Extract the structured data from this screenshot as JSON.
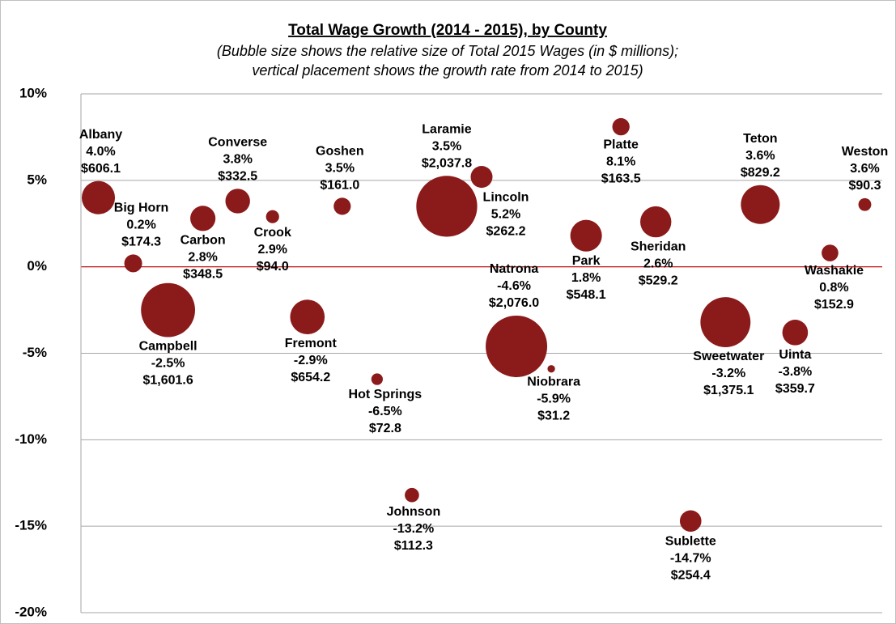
{
  "chart_data": {
    "type": "bubble",
    "title": "Total Wage Growth (2014 - 2015), by County",
    "subtitle": [
      "(Bubble size shows the relative size of Total 2015 Wages (in $ millions);",
      "vertical placement shows the growth rate from 2014 to 2015)"
    ],
    "color": "#8b1a1a",
    "zero_line_color": "#c00000",
    "grid": true,
    "ylim": [
      -20,
      10
    ],
    "yticks": [
      {
        "value": -20,
        "label": "-20%"
      },
      {
        "value": -15,
        "label": "-15%"
      },
      {
        "value": -10,
        "label": "-10%"
      },
      {
        "value": -5,
        "label": "-5%"
      },
      {
        "value": 0,
        "label": "0%"
      },
      {
        "value": 5,
        "label": "5%"
      },
      {
        "value": 10,
        "label": "10%"
      }
    ],
    "categories": [
      "Albany",
      "Big Horn",
      "Campbell",
      "Carbon",
      "Converse",
      "Crook",
      "Fremont",
      "Goshen",
      "Hot Springs",
      "Johnson",
      "Laramie",
      "Lincoln",
      "Natrona",
      "Niobrara",
      "Park",
      "Platte",
      "Sheridan",
      "Sublette",
      "Sweetwater",
      "Teton",
      "Uinta",
      "Washakie",
      "Weston"
    ],
    "values": [
      4.0,
      0.2,
      -2.5,
      2.8,
      3.8,
      2.9,
      -2.9,
      3.5,
      -6.5,
      -13.2,
      3.5,
      5.2,
      -4.6,
      -5.9,
      1.8,
      8.1,
      2.6,
      -14.7,
      -3.2,
      3.6,
      -3.8,
      0.8,
      3.6
    ],
    "value_labels": [
      "4.0%",
      "0.2%",
      "-2.5%",
      "2.8%",
      "3.8%",
      "2.9%",
      "-2.9%",
      "3.5%",
      "-6.5%",
      "-13.2%",
      "3.5%",
      "5.2%",
      "-4.6%",
      "-5.9%",
      "1.8%",
      "8.1%",
      "2.6%",
      "-14.7%",
      "-3.2%",
      "3.6%",
      "-3.8%",
      "0.8%",
      "3.6%"
    ],
    "sizes": [
      606.1,
      174.3,
      1601.6,
      348.5,
      332.5,
      94.0,
      654.2,
      161.0,
      72.8,
      112.3,
      2037.8,
      262.2,
      2076.0,
      31.2,
      548.1,
      163.5,
      529.2,
      254.4,
      1375.1,
      829.2,
      359.7,
      152.9,
      90.3
    ],
    "size_labels": [
      "$606.1",
      "$174.3",
      "$1,601.6",
      "$348.5",
      "$332.5",
      "$94.0",
      "$654.2",
      "$161.0",
      "$72.8",
      "$112.3",
      "$2,037.8",
      "$262.2",
      "$2,076.0",
      "$31.2",
      "$548.1",
      "$163.5",
      "$529.2",
      "$254.4",
      "$1,375.1",
      "$829.2",
      "$359.7",
      "$152.9",
      "$90.3"
    ]
  }
}
